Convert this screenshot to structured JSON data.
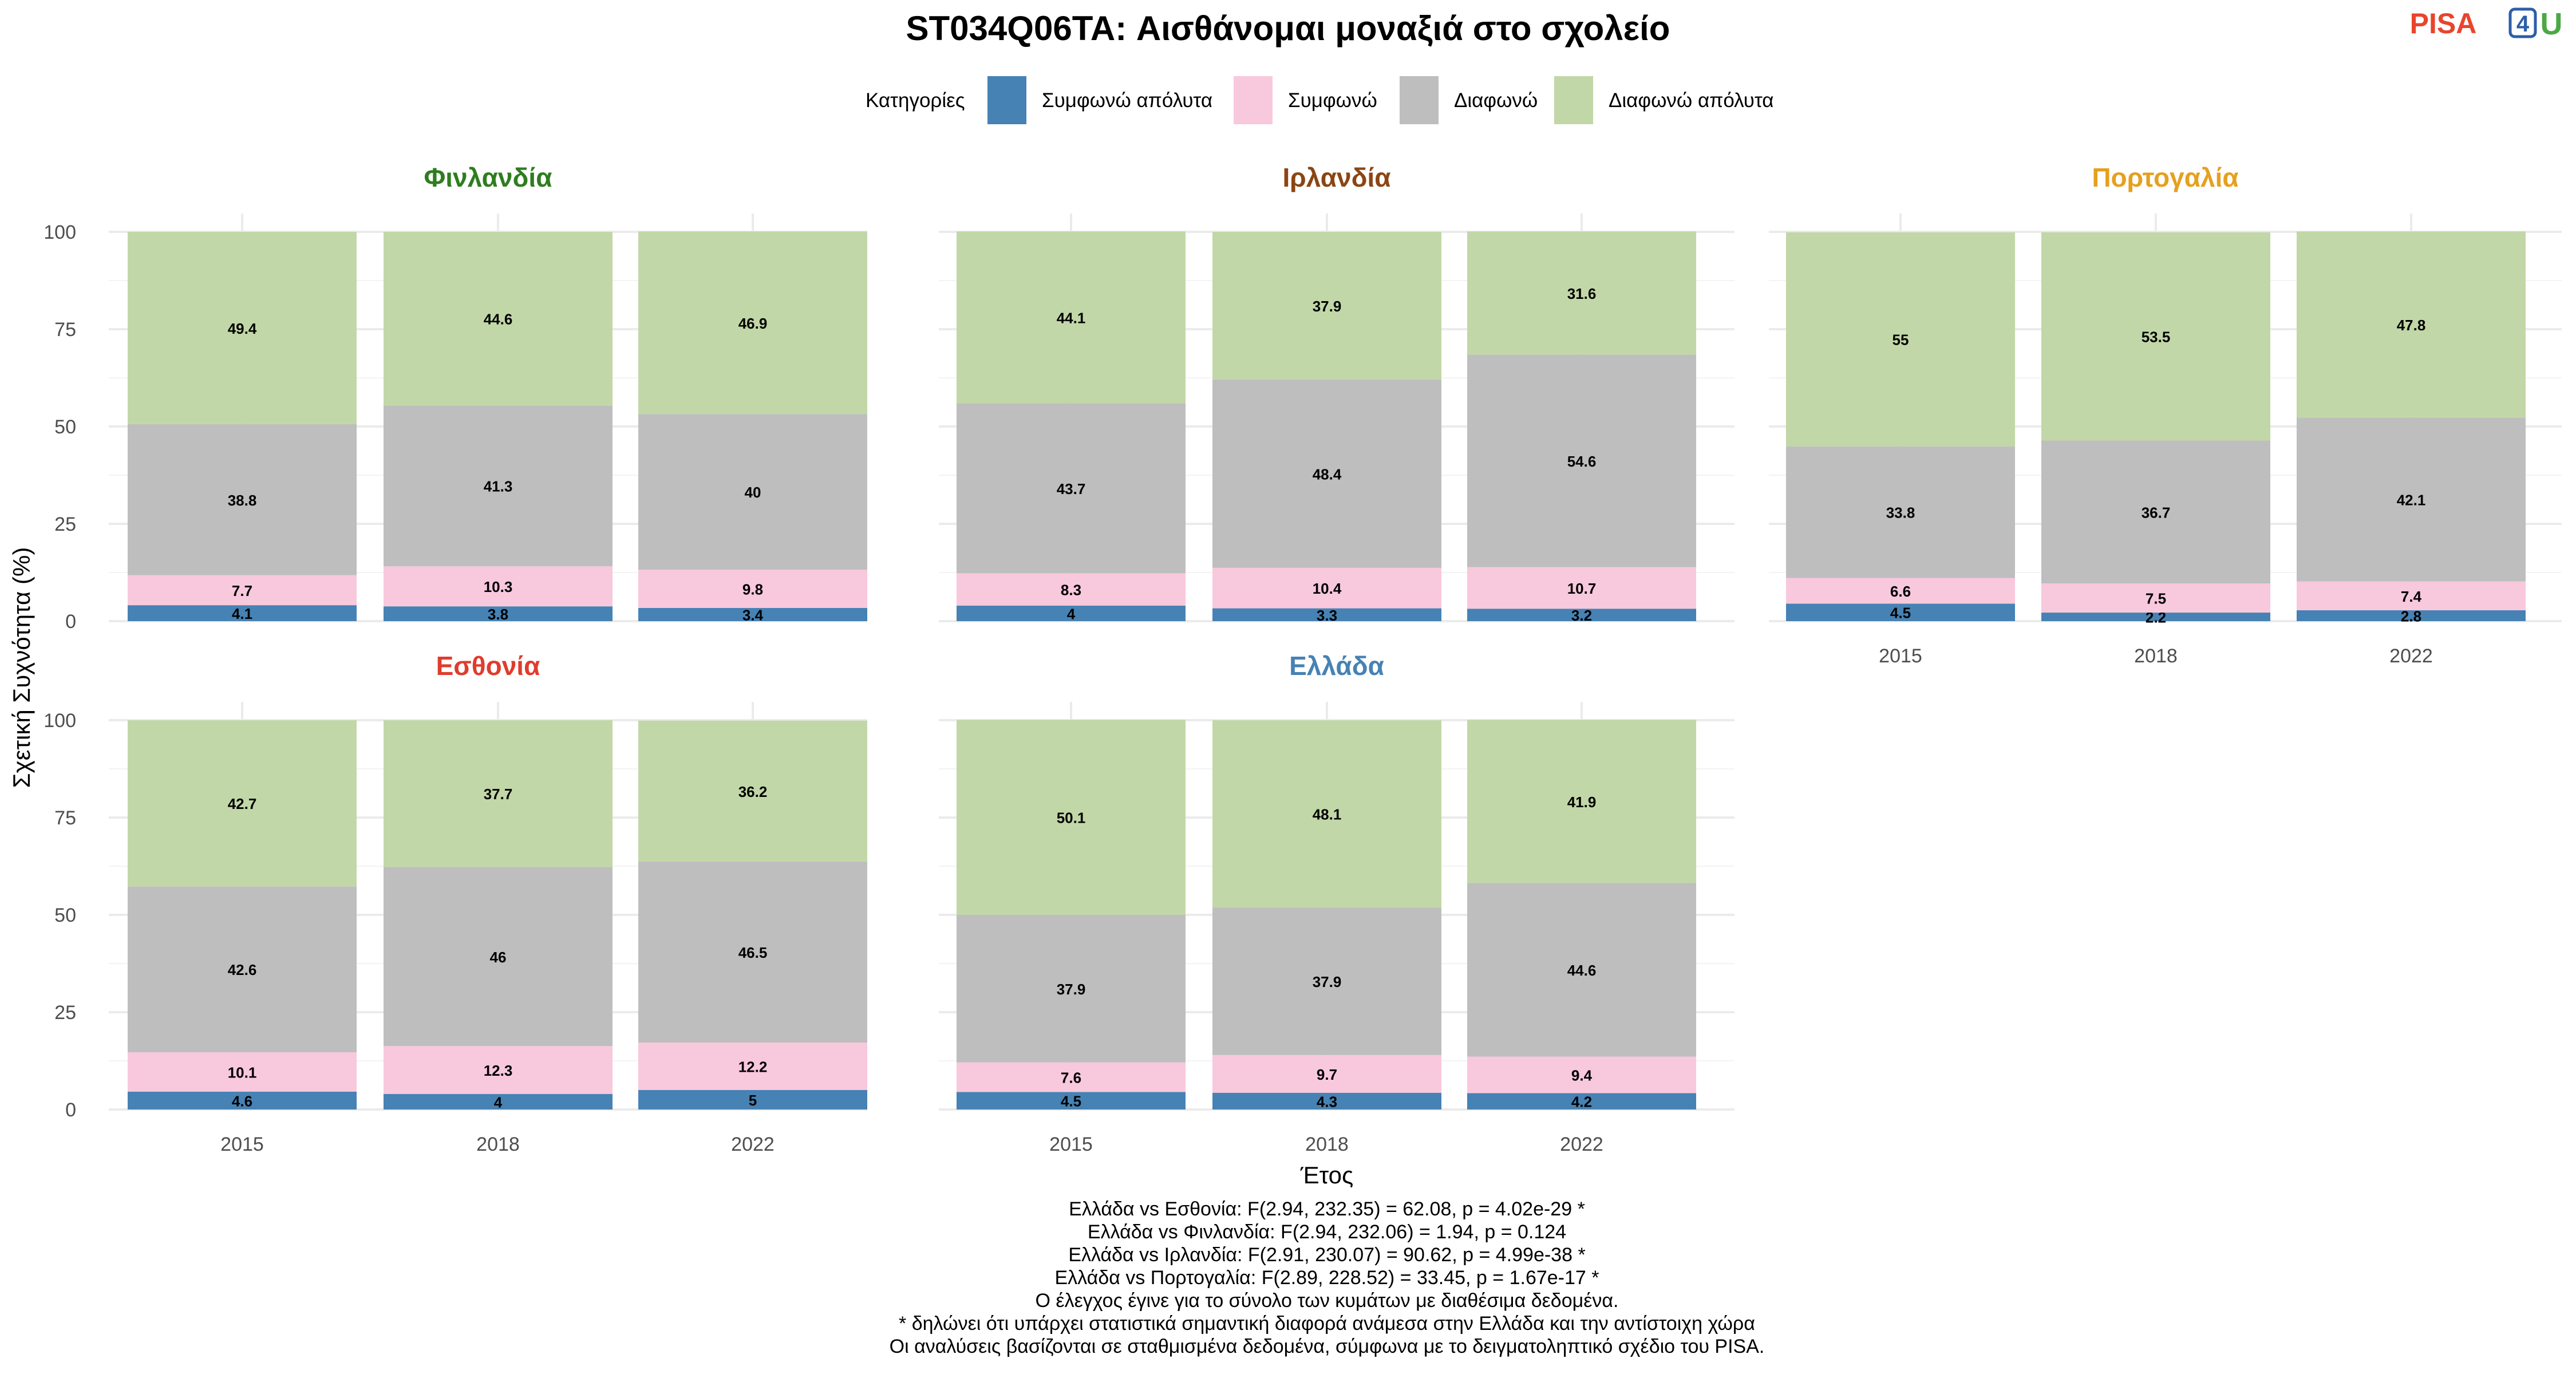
{
  "logo": {
    "text_part": "PISA",
    "num_part": "4",
    "end_part": "U"
  },
  "chart_data": {
    "type": "bar",
    "stacked": true,
    "title": "ST034Q06TA: Αισθάνομαι μοναξιά στο σχολείο",
    "xlabel": "Έτος",
    "ylabel": "Σχετική Συχνότητα (%)",
    "ylim": [
      0,
      100
    ],
    "yticks": [
      0,
      25,
      50,
      75,
      100
    ],
    "grid": true,
    "legend_position": "top",
    "legend_title": "Κατηγορίες",
    "categories": [
      "2015",
      "2018",
      "2022"
    ],
    "series_names": [
      "Συμφωνώ απόλυτα",
      "Συμφωνώ",
      "Διαφωνώ",
      "Διαφωνώ απόλυτα"
    ],
    "series_colors": [
      "#4682b4",
      "#f8c8dc",
      "#bebebe",
      "#c2d7a7"
    ],
    "facets": [
      {
        "name": "Φινλανδία",
        "color": "#2e7d1e",
        "values": [
          [
            4.1,
            7.7,
            38.8,
            49.4
          ],
          [
            3.8,
            10.3,
            41.3,
            44.6
          ],
          [
            3.4,
            9.8,
            40,
            46.9
          ]
        ]
      },
      {
        "name": "Ιρλανδία",
        "color": "#8b4513",
        "values": [
          [
            4,
            8.3,
            43.7,
            44.1
          ],
          [
            3.3,
            10.4,
            48.4,
            37.9
          ],
          [
            3.2,
            10.7,
            54.6,
            31.6
          ]
        ]
      },
      {
        "name": "Πορτογαλία",
        "color": "#e6a01e",
        "values": [
          [
            4.5,
            6.6,
            33.8,
            55
          ],
          [
            2.2,
            7.5,
            36.7,
            53.5
          ],
          [
            2.8,
            7.4,
            42.1,
            47.8
          ]
        ]
      },
      {
        "name": "Εσθονία",
        "color": "#e03c2d",
        "values": [
          [
            4.6,
            10.1,
            42.6,
            42.7
          ],
          [
            4,
            12.3,
            46,
            37.7
          ],
          [
            5,
            12.2,
            46.5,
            36.2
          ]
        ]
      },
      {
        "name": "Ελλάδα",
        "color": "#4682b4",
        "values": [
          [
            4.5,
            7.6,
            37.9,
            50.1
          ],
          [
            4.3,
            9.7,
            37.9,
            48.1
          ],
          [
            4.2,
            9.4,
            44.6,
            41.9
          ]
        ]
      }
    ],
    "caption_lines": [
      "Ελλάδα vs Εσθονία: F(2.94, 232.35) = 62.08, p = 4.02e-29 *",
      "Ελλάδα vs Φινλανδία: F(2.94, 232.06) = 1.94, p = 0.124",
      "Ελλάδα vs Ιρλανδία: F(2.91, 230.07) = 90.62, p = 4.99e-38 *",
      "Ελλάδα vs Πορτογαλία: F(2.89, 228.52) = 33.45, p = 1.67e-17 *",
      "Ο έλεγχος έγινε για το σύνολο των κυμάτων με διαθέσιμα δεδομένα.",
      "* δηλώνει ότι υπάρχει στατιστικά σημαντική διαφορά ανάμεσα στην Ελλάδα και την αντίστοιχη χώρα",
      "Οι αναλύσεις βασίζονται σε σταθμισμένα δεδομένα, σύμφωνα με το δειγματοληπτικό σχέδιο του PISA."
    ]
  }
}
